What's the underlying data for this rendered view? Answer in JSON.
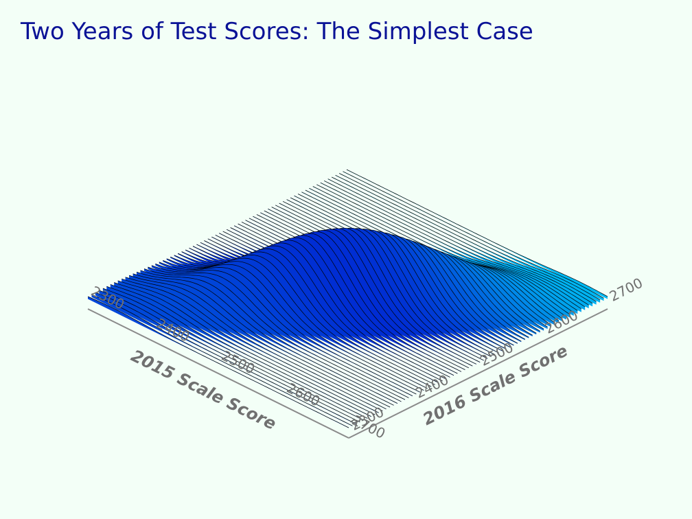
{
  "title": "Two Years of Test Scores: The Simplest Case",
  "chart_data": {
    "type": "surface",
    "title": "Two Years of Test Scores: The Simplest Case",
    "x_axis": {
      "label": "2015 Scale Score",
      "ticks": [
        2300,
        2400,
        2500,
        2600,
        2700
      ],
      "range": [
        2300,
        2700
      ]
    },
    "y_axis": {
      "label": "2016 Scale Score",
      "ticks": [
        2300,
        2400,
        2500,
        2600,
        2700
      ],
      "range": [
        2300,
        2700
      ]
    },
    "surface": {
      "kind": "bivariate normal density",
      "mean_2015": 2500,
      "mean_2016": 2500,
      "sd_2015": 80,
      "sd_2016": 80,
      "correlation": 0.8
    },
    "colors": {
      "low": "#00f0ff",
      "high": "#0020d0",
      "grid_line": "#000000",
      "axis": "#808080",
      "title": "#0a1296"
    }
  }
}
